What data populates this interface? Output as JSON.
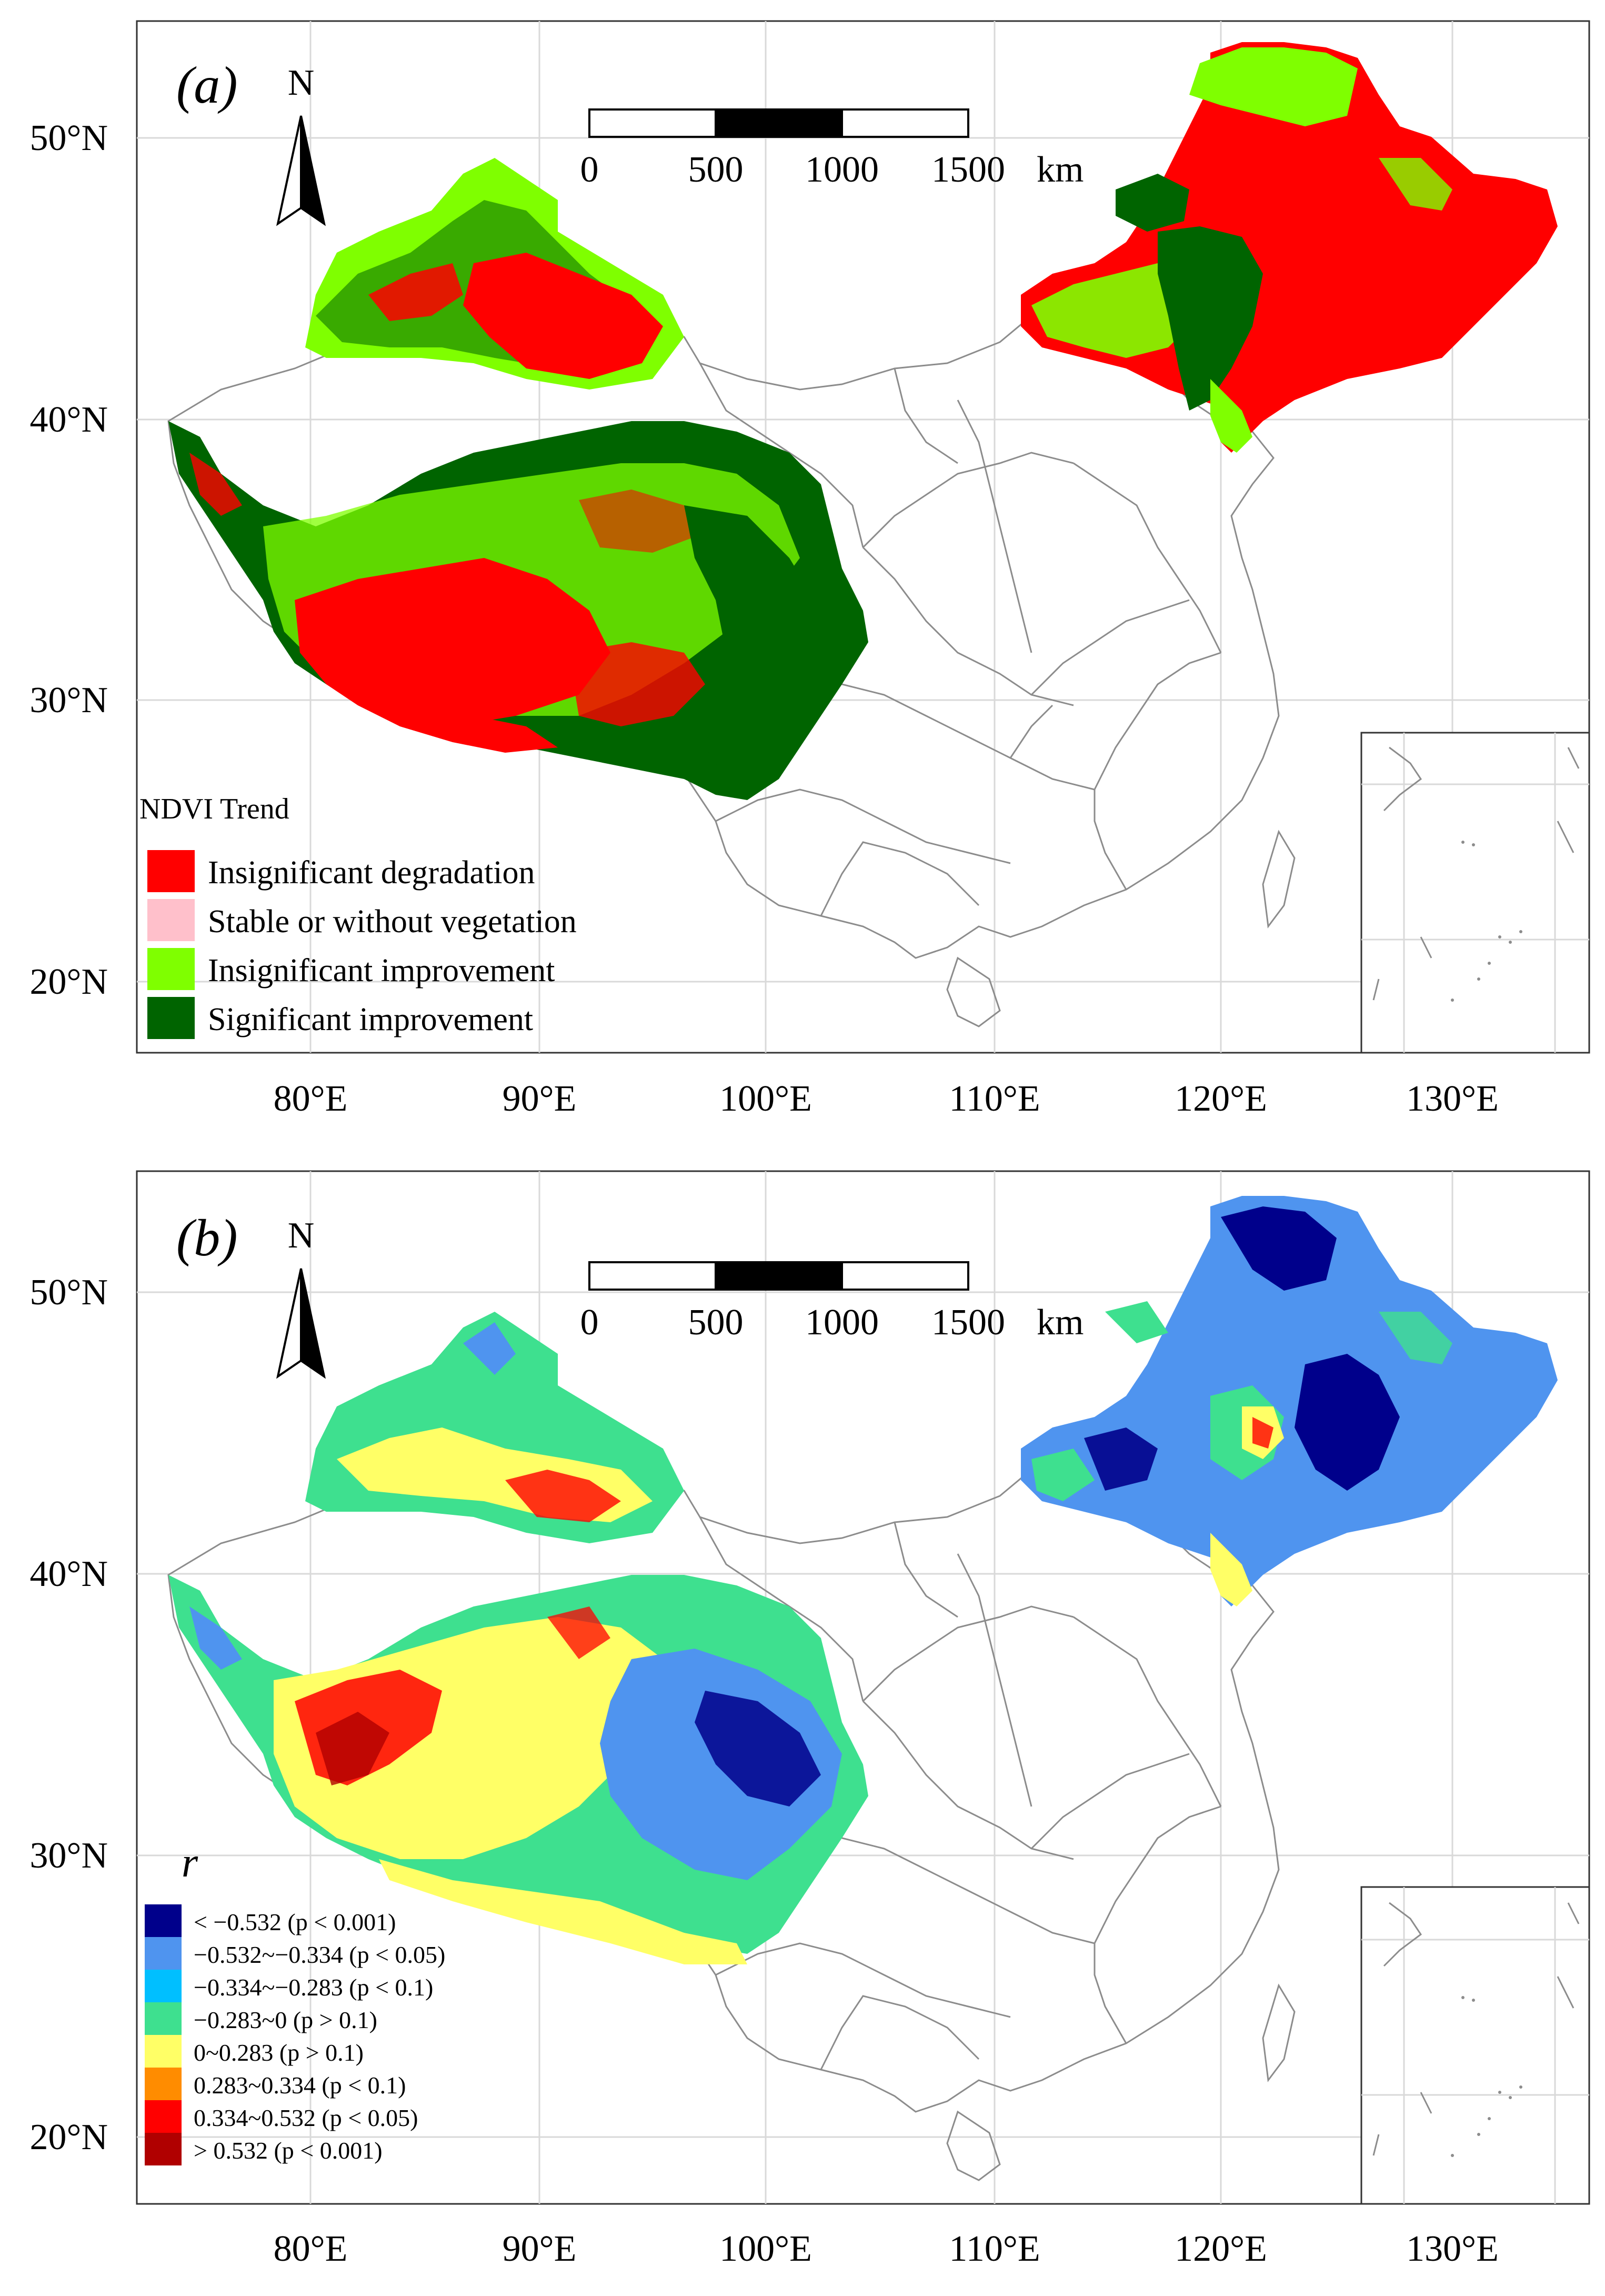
{
  "panels": [
    {
      "label": "(a)",
      "north_arrow": "N",
      "scale_bar": {
        "ticks": [
          "0",
          "500",
          "1000",
          "1500"
        ],
        "unit": "km"
      },
      "lat_labels": [
        "50°N",
        "40°N",
        "30°N",
        "20°N"
      ],
      "lon_labels": [
        "80°E",
        "90°E",
        "100°E",
        "110°E",
        "120°E",
        "130°E"
      ],
      "legend": {
        "title": "NDVI Trend",
        "items": [
          {
            "label": "Insignificant degradation",
            "color": "#ff0000"
          },
          {
            "label": "Stable or without vegetation",
            "color": "#ffc0cb"
          },
          {
            "label": "Insignificant improvement",
            "color": "#7fff00"
          },
          {
            "label": "Significant improvement",
            "color": "#006400"
          }
        ]
      }
    },
    {
      "label": "(b)",
      "north_arrow": "N",
      "scale_bar": {
        "ticks": [
          "0",
          "500",
          "1000",
          "1500"
        ],
        "unit": "km"
      },
      "lat_labels": [
        "50°N",
        "40°N",
        "30°N",
        "20°N"
      ],
      "lon_labels": [
        "80°E",
        "90°E",
        "100°E",
        "110°E",
        "120°E",
        "130°E"
      ],
      "legend": {
        "title": "r",
        "items": [
          {
            "label": "< −0.532 (p < 0.001)",
            "color": "#00008b"
          },
          {
            "label": "−0.532~−0.334 (p < 0.05)",
            "color": "#4f94ef"
          },
          {
            "label": "−0.334~−0.283 (p < 0.1)",
            "color": "#00bfff"
          },
          {
            "label": "−0.283~0 (p > 0.1)",
            "color": "#3ee08f"
          },
          {
            "label": "0~0.283 (p > 0.1)",
            "color": "#ffff66"
          },
          {
            "label": "0.283~0.334 (p < 0.1)",
            "color": "#ff8c00"
          },
          {
            "label": "0.334~0.532 (p < 0.05)",
            "color": "#ff0000"
          },
          {
            "label": "> 0.532 (p < 0.001)",
            "color": "#b00000"
          }
        ]
      }
    }
  ]
}
